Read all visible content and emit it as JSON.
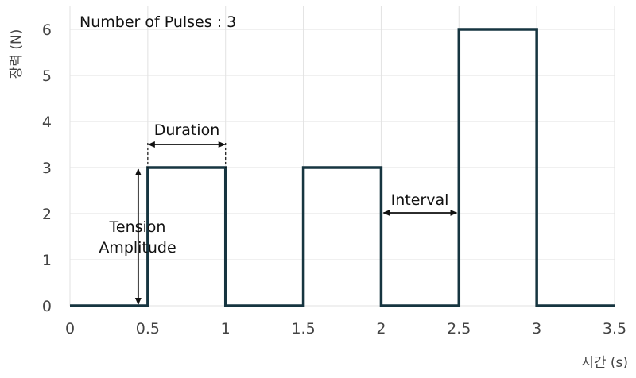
{
  "chart_data": {
    "type": "line",
    "title": "",
    "xlabel": "시간 (s)",
    "ylabel": "장력 (N)",
    "xlim": [
      0,
      3.5
    ],
    "ylim": [
      0,
      6.5
    ],
    "x_ticks": [
      "0",
      "0.5",
      "1",
      "1.5",
      "2",
      "2.5",
      "3",
      "3.5"
    ],
    "x_tick_values": [
      0,
      0.5,
      1,
      1.5,
      2,
      2.5,
      3,
      3.5
    ],
    "y_ticks": [
      "0",
      "1",
      "2",
      "3",
      "4",
      "5",
      "6"
    ],
    "y_tick_values": [
      0,
      1,
      2,
      3,
      4,
      5,
      6
    ],
    "grid": true,
    "series": [
      {
        "x": [
          0,
          0.5,
          0.5,
          1,
          1,
          1.5,
          1.5,
          2,
          2,
          2.5,
          2.5,
          3,
          3,
          3.5
        ],
        "y": [
          0,
          0,
          3,
          3,
          0,
          0,
          3,
          3,
          0,
          0,
          6,
          6,
          0,
          0
        ]
      }
    ],
    "annotations": {
      "pulses": "Number of Pulses : 3",
      "duration": "Duration",
      "interval": "Interval",
      "tension_line1": "Tension",
      "tension_line2": "Amplitude"
    },
    "colors": {
      "line": "#163540",
      "grid": "#e2e2e2",
      "text": "#444444",
      "annotation": "#111111"
    }
  }
}
